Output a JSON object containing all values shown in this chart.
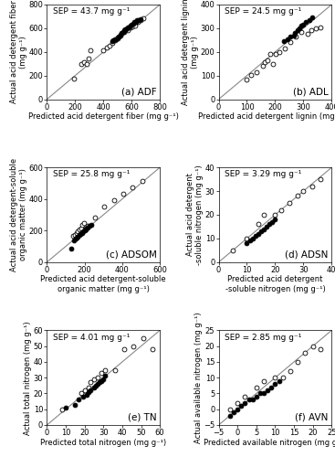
{
  "panels": [
    {
      "label": "(a) ADF",
      "sep_text": "SEP = 43.7 mg g⁻¹",
      "xlim": [
        0,
        800
      ],
      "ylim": [
        0,
        800
      ],
      "xticks": [
        0,
        200,
        400,
        600,
        800
      ],
      "yticks": [
        0,
        200,
        400,
        600,
        800
      ],
      "xlabel": "Predicted acid detergent fiber (mg g⁻¹)",
      "ylabel": "Actual acid detergent fiber\n(mg g⁻¹)",
      "cattle_x": [
        460,
        470,
        480,
        490,
        500,
        510,
        520,
        530,
        540,
        550,
        555,
        560,
        570,
        580,
        590,
        600,
        610,
        620,
        630,
        640,
        650,
        660
      ],
      "cattle_y": [
        490,
        500,
        510,
        510,
        520,
        530,
        545,
        560,
        570,
        580,
        590,
        590,
        605,
        610,
        620,
        630,
        640,
        650,
        655,
        665,
        670,
        680
      ],
      "swine_x": [
        190,
        245,
        265,
        280,
        295,
        305,
        395,
        425,
        445,
        460,
        480,
        500,
        520,
        545,
        570,
        590,
        605,
        625,
        645,
        660,
        680
      ],
      "swine_y": [
        175,
        300,
        310,
        300,
        345,
        415,
        415,
        435,
        455,
        475,
        495,
        515,
        535,
        565,
        580,
        605,
        615,
        625,
        655,
        670,
        685
      ]
    },
    {
      "label": "(b) ADL",
      "sep_text": "SEP = 24.5 mg g⁻¹",
      "xlim": [
        0,
        400
      ],
      "ylim": [
        0,
        400
      ],
      "xticks": [
        0,
        100,
        200,
        300,
        400
      ],
      "yticks": [
        0,
        100,
        200,
        300,
        400
      ],
      "xlabel": "Predicted acid detergent lignin (mg g⁻¹)",
      "ylabel": "Actual acid detergent lignin\n(mg g⁻¹)",
      "cattle_x": [
        230,
        245,
        255,
        265,
        270,
        278,
        285,
        293,
        300,
        310,
        320,
        330
      ],
      "cattle_y": [
        245,
        255,
        265,
        270,
        280,
        290,
        300,
        310,
        315,
        325,
        335,
        345
      ],
      "swine_x": [
        100,
        115,
        135,
        155,
        163,
        173,
        183,
        193,
        203,
        215,
        235,
        255,
        273,
        293,
        315,
        328,
        343,
        360
      ],
      "swine_y": [
        85,
        103,
        113,
        140,
        155,
        163,
        190,
        148,
        193,
        200,
        213,
        240,
        263,
        285,
        278,
        290,
        300,
        303
      ]
    },
    {
      "label": "(c) ADSOM",
      "sep_text": "SEP = 25.8 mg g⁻¹",
      "xlim": [
        0,
        600
      ],
      "ylim": [
        0,
        600
      ],
      "xticks": [
        0,
        200,
        400,
        600
      ],
      "yticks": [
        0,
        200,
        400,
        600
      ],
      "xlabel": "Predicted acid detergent-soluble\norganic matter (mg g⁻¹)",
      "ylabel": "Actual acid detergent-soluble\norganic matter (mg g⁻¹)",
      "cattle_x": [
        130,
        145,
        152,
        158,
        165,
        172,
        178,
        185,
        192,
        200,
        208,
        215,
        225,
        235
      ],
      "cattle_y": [
        85,
        140,
        148,
        155,
        162,
        170,
        178,
        185,
        195,
        200,
        208,
        218,
        228,
        238
      ],
      "swine_x": [
        140,
        148,
        158,
        165,
        172,
        180,
        188,
        195,
        205,
        215,
        255,
        305,
        355,
        405,
        455,
        505
      ],
      "swine_y": [
        165,
        175,
        183,
        193,
        205,
        215,
        235,
        245,
        215,
        230,
        285,
        355,
        395,
        435,
        475,
        515
      ]
    },
    {
      "label": "(d) ADSN",
      "sep_text": "SEP = 3.29 mg g⁻¹",
      "xlim": [
        0,
        40
      ],
      "ylim": [
        0,
        40
      ],
      "xticks": [
        0,
        10,
        20,
        30,
        40
      ],
      "yticks": [
        0,
        10,
        20,
        30,
        40
      ],
      "xlabel": "Predicted acid detergent\n-soluble nitrogen (mg g⁻¹)",
      "ylabel": "Actual acid detergent\n-soluble nitrogen (mg g⁻¹)",
      "cattle_x": [
        10,
        11,
        12,
        13,
        14,
        15,
        16,
        17,
        18,
        19,
        20
      ],
      "cattle_y": [
        8,
        9,
        10,
        11,
        12,
        13,
        14,
        15,
        16,
        17,
        18
      ],
      "swine_x": [
        5,
        10,
        14,
        16,
        20,
        22,
        25,
        28,
        30,
        33,
        36
      ],
      "swine_y": [
        5,
        10,
        16,
        20,
        20,
        22,
        25,
        28,
        30,
        32,
        35
      ]
    },
    {
      "label": "(e) TN",
      "sep_text": "SEP = 4.01 mg g⁻¹",
      "xlim": [
        0,
        60
      ],
      "ylim": [
        0,
        60
      ],
      "xticks": [
        0,
        10,
        20,
        30,
        40,
        50,
        60
      ],
      "yticks": [
        0,
        10,
        20,
        30,
        40,
        50,
        60
      ],
      "xlabel": "Predicted total nitrogen (mg g⁻¹)",
      "ylabel": "Actual total nitrogen (mg g⁻¹)",
      "cattle_x": [
        10,
        15,
        17,
        19,
        21,
        22,
        23,
        25,
        26,
        27,
        28,
        29,
        30,
        31
      ],
      "cattle_y": [
        11,
        13,
        16,
        18,
        19,
        21,
        22,
        24,
        25,
        26,
        27,
        28,
        29,
        31
      ],
      "swine_x": [
        8,
        18,
        20,
        22,
        23,
        25,
        27,
        29,
        31,
        36,
        41,
        46,
        51,
        56
      ],
      "swine_y": [
        10,
        20,
        22,
        24,
        27,
        29,
        30,
        33,
        35,
        35,
        48,
        50,
        55,
        48
      ]
    },
    {
      "label": "(f) AVN",
      "sep_text": "SEP = 2.85 mg g⁻¹",
      "xlim": [
        -5,
        25
      ],
      "ylim": [
        -5,
        25
      ],
      "xticks": [
        -5,
        0,
        5,
        10,
        15,
        20,
        25
      ],
      "yticks": [
        -5,
        0,
        5,
        10,
        15,
        20,
        25
      ],
      "xlabel": "Predicted available nitrogen (mg g⁻¹)",
      "ylabel": "Actual available nitrogen (mg g⁻¹)",
      "cattle_x": [
        -2,
        -1,
        0,
        1,
        2,
        3,
        4,
        5,
        6,
        7,
        8,
        9,
        10,
        11
      ],
      "cattle_y": [
        -2,
        -1,
        0,
        1,
        2,
        3,
        3,
        4,
        5,
        5,
        6,
        7,
        8,
        9
      ],
      "swine_x": [
        -2,
        0,
        2,
        5,
        7,
        10,
        12,
        14,
        16,
        18,
        20,
        22
      ],
      "swine_y": [
        0,
        2,
        4,
        7,
        9,
        10,
        10,
        12,
        15,
        18,
        20,
        19
      ]
    }
  ],
  "markersize": 3.5,
  "fontsize_label": 6,
  "fontsize_tick": 6,
  "fontsize_sep": 6.5,
  "fontsize_panel": 7.5
}
